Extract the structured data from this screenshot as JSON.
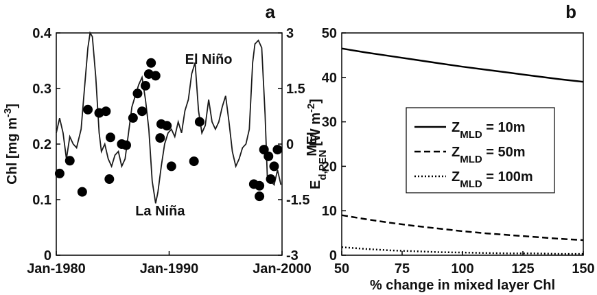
{
  "chart_data": [
    {
      "type": "line",
      "panel_label": "a",
      "ylabel": {
        "text": "Chl [mg m",
        "sup": "-3",
        "end": "]"
      },
      "y2label": "MEI",
      "xlim": [
        1980,
        2000
      ],
      "xticks": [
        {
          "value": 1980,
          "label": "Jan-1980"
        },
        {
          "value": 1990,
          "label": "Jan-1990"
        },
        {
          "value": 2000,
          "label": "Jan-2000"
        }
      ],
      "ylim": [
        0,
        0.4
      ],
      "yticks": [
        0,
        0.1,
        0.2,
        0.3,
        0.4
      ],
      "y2lim": [
        -3,
        3
      ],
      "y2ticks": [
        -3,
        -1.5,
        0,
        1.5,
        3
      ],
      "annotations": [
        {
          "text": "El Niño",
          "x": 1993.5,
          "y": 2.3,
          "axis": "y2"
        },
        {
          "text": "La Niña",
          "x": 1989.2,
          "y": -1.8,
          "axis": "y2"
        }
      ],
      "series": [
        {
          "type": "line",
          "axis": "y2",
          "color": "#1a1a1a",
          "x": [
            1980.0,
            1980.3,
            1980.6,
            1980.9,
            1981.2,
            1981.5,
            1981.8,
            1982.2,
            1982.5,
            1982.8,
            1983.0,
            1983.2,
            1983.5,
            1983.8,
            1984.0,
            1984.3,
            1984.6,
            1984.9,
            1985.2,
            1985.5,
            1985.8,
            1986.1,
            1986.4,
            1986.7,
            1987.0,
            1987.3,
            1987.6,
            1987.9,
            1988.2,
            1988.5,
            1988.8,
            1989.0,
            1989.3,
            1989.6,
            1989.9,
            1990.2,
            1990.5,
            1990.8,
            1991.1,
            1991.4,
            1991.7,
            1992.0,
            1992.3,
            1992.6,
            1992.9,
            1993.2,
            1993.5,
            1993.8,
            1994.1,
            1994.4,
            1994.7,
            1995.0,
            1995.3,
            1995.6,
            1995.9,
            1996.2,
            1996.5,
            1996.8,
            1997.1,
            1997.4,
            1997.6,
            1997.9,
            1998.2,
            1998.5,
            1998.7,
            1999.0,
            1999.3,
            1999.6,
            1999.9
          ],
          "values": [
            0.3,
            0.7,
            0.3,
            -0.4,
            0.2,
            0.0,
            -0.1,
            0.4,
            1.5,
            2.6,
            3.0,
            2.9,
            1.8,
            0.3,
            -0.2,
            0.0,
            -0.4,
            -0.6,
            -0.3,
            -0.2,
            -0.6,
            -0.4,
            0.3,
            1.0,
            1.3,
            1.6,
            1.8,
            1.2,
            0.4,
            -1.0,
            -1.6,
            -1.3,
            -0.6,
            0.0,
            0.3,
            0.4,
            0.2,
            0.6,
            0.3,
            0.9,
            1.2,
            1.9,
            2.2,
            0.9,
            0.3,
            0.5,
            1.2,
            0.6,
            0.4,
            0.6,
            1.0,
            1.3,
            0.6,
            -0.2,
            -0.6,
            -0.4,
            -0.1,
            0.0,
            0.4,
            2.2,
            2.7,
            2.8,
            2.6,
            0.8,
            -0.9,
            -1.0,
            -1.1,
            -0.7,
            -1.1
          ]
        },
        {
          "type": "scatter",
          "color": "#000000",
          "x": [
            1980.3,
            1981.2,
            1982.3,
            1982.8,
            1983.8,
            1984.4,
            1984.8,
            1984.7,
            1985.8,
            1986.2,
            1986.8,
            1987.2,
            1987.6,
            1987.9,
            1988.2,
            1988.4,
            1988.8,
            1989.2,
            1989.3,
            1989.8,
            1990.2,
            1992.2,
            1992.7,
            1997.5,
            1998.0,
            1998.0,
            1998.4,
            1998.8,
            1999.0,
            1999.3,
            1999.6
          ],
          "values": [
            0.147,
            0.17,
            0.114,
            0.262,
            0.256,
            0.259,
            0.212,
            0.137,
            0.2,
            0.198,
            0.247,
            0.291,
            0.259,
            0.305,
            0.326,
            0.346,
            0.323,
            0.211,
            0.236,
            0.233,
            0.16,
            0.169,
            0.24,
            0.128,
            0.106,
            0.125,
            0.19,
            0.178,
            0.137,
            0.16,
            0.19
          ]
        }
      ]
    },
    {
      "type": "line",
      "panel_label": "b",
      "ylabel": {
        "text": "E",
        "sub": "d,PEN",
        "mid": " [W m",
        "sup": "-2",
        "end": "]"
      },
      "xlabel": "% change in mixed layer Chl",
      "xlim": [
        50,
        150
      ],
      "xticks": [
        50,
        75,
        100,
        125,
        150
      ],
      "ylim": [
        0,
        50
      ],
      "yticks": [
        0,
        10,
        20,
        30,
        40,
        50
      ],
      "legend_var": {
        "base": "Z",
        "sub": "MLD"
      },
      "x": [
        50,
        60,
        70,
        80,
        90,
        100,
        110,
        120,
        130,
        140,
        150
      ],
      "series": [
        {
          "name": " = 10m",
          "color": "#000000",
          "line_style": "solid",
          "values": [
            46.5,
            45.6,
            44.8,
            44.0,
            43.2,
            42.4,
            41.7,
            41.0,
            40.3,
            39.6,
            39.0
          ]
        },
        {
          "name": " = 50m",
          "color": "#000000",
          "line_style": "dashed",
          "values": [
            9.0,
            8.1,
            7.3,
            6.6,
            6.0,
            5.4,
            4.9,
            4.5,
            4.1,
            3.7,
            3.4
          ]
        },
        {
          "name": " = 100m",
          "color": "#000000",
          "line_style": "dotted",
          "values": [
            1.8,
            1.4,
            1.1,
            0.9,
            0.7,
            0.6,
            0.5,
            0.4,
            0.4,
            0.3,
            0.3
          ]
        }
      ]
    }
  ]
}
